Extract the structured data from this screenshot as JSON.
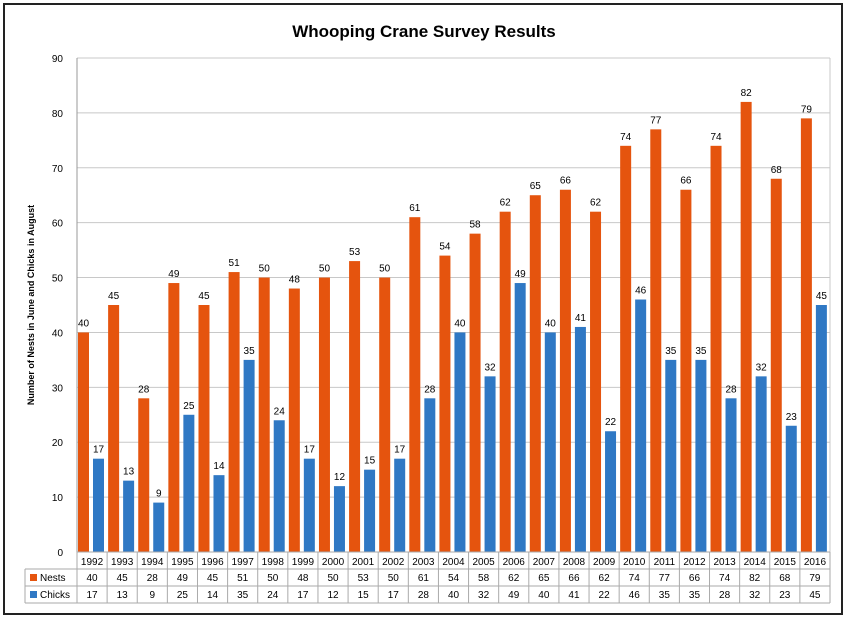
{
  "chart_data": {
    "type": "bar",
    "title": "Whooping Crane Survey Results",
    "xlabel": "",
    "ylabel": "Number of Nests in June and  Chicks in August",
    "ylim": [
      0,
      90
    ],
    "yticks": [
      0,
      10,
      20,
      30,
      40,
      50,
      60,
      70,
      80,
      90
    ],
    "grid": true,
    "legend": "data-table-left",
    "categories": [
      "1992",
      "1993",
      "1994",
      "1995",
      "1996",
      "1997",
      "1998",
      "1999",
      "2000",
      "2001",
      "2002",
      "2003",
      "2004",
      "2005",
      "2006",
      "2007",
      "2008",
      "2009",
      "2010",
      "2011",
      "2012",
      "2013",
      "2014",
      "2015",
      "2016"
    ],
    "series": [
      {
        "name": "Nests",
        "color": "#e5540e",
        "values": [
          40,
          45,
          28,
          49,
          45,
          51,
          50,
          48,
          50,
          53,
          50,
          61,
          54,
          58,
          62,
          65,
          66,
          62,
          74,
          77,
          66,
          74,
          82,
          68,
          79
        ]
      },
      {
        "name": "Chicks",
        "color": "#2f78c4",
        "values": [
          17,
          13,
          9,
          25,
          14,
          35,
          24,
          17,
          12,
          15,
          17,
          28,
          40,
          32,
          49,
          40,
          41,
          22,
          46,
          35,
          35,
          28,
          32,
          23,
          45
        ]
      }
    ]
  }
}
